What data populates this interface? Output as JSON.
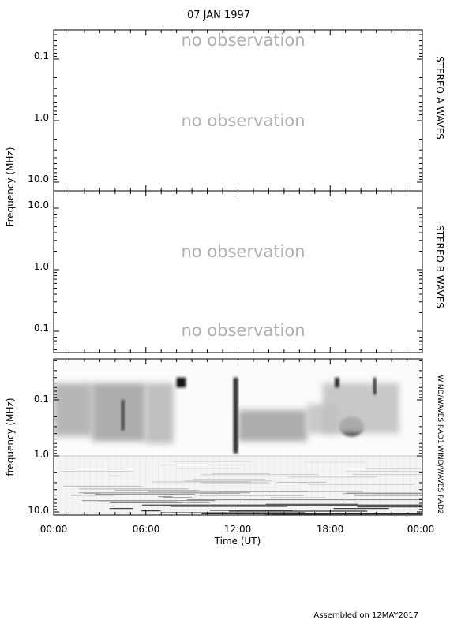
{
  "title": "07 JAN 1997",
  "footer": "Assembled on 12MAY2017",
  "colors": {
    "axis": "#000000",
    "no_observation_text": "#b0b0b0",
    "spectrogram_dark": "#111111"
  },
  "chart_data": [
    {
      "type": "heatmap",
      "panel": "STEREO A WAVES",
      "side_label": "STEREO A WAVES",
      "ylabel": "Frequency (MHz)",
      "y_scale": "log",
      "y_direction": "frequency decreases downward",
      "ylim": [
        12.5,
        0.04
      ],
      "yticks": [
        "0.1",
        "1.0",
        "10.0"
      ],
      "status_text": [
        "no observation",
        "no observation"
      ],
      "data": "none"
    },
    {
      "type": "heatmap",
      "panel": "STEREO B WAVES",
      "side_label": "STEREO B WAVES",
      "ylabel": "Frequency (MHz)",
      "y_scale": "log",
      "y_direction": "frequency decreases upward",
      "ylim": [
        0.045,
        13
      ],
      "yticks": [
        "10.0",
        "1.0",
        "0.1"
      ],
      "status_text": [
        "no observation",
        "no observation"
      ],
      "data": "none"
    },
    {
      "type": "heatmap",
      "panel": "WIND/WAVES",
      "ylabel": "frequency (MHz)",
      "xlabel": "Time (UT)",
      "x_ticks": [
        "00:00",
        "06:00",
        "12:00",
        "18:00",
        "00:00"
      ],
      "y_scale": "log",
      "ylim": [
        12.5,
        0.04
      ],
      "yticks": [
        "0.1",
        "1.0",
        "10.0"
      ],
      "sub_bands": [
        {
          "name": "WIND/WAVES RAD1",
          "range_mhz": [
            0.04,
            1.0
          ]
        },
        {
          "name": "WIND/WAVES RAD2",
          "range_mhz": [
            1.0,
            12.5
          ]
        }
      ],
      "features": [
        {
          "kind": "diffuse emission",
          "t_start_h": 0.0,
          "t_end_h": 2.5,
          "f_hi_mhz": 0.05,
          "f_lo_mhz": 0.45,
          "intensity": 0.3
        },
        {
          "kind": "diffuse emission",
          "t_start_h": 2.5,
          "t_end_h": 6.0,
          "f_hi_mhz": 0.05,
          "f_lo_mhz": 0.55,
          "intensity": 0.35
        },
        {
          "kind": "diffuse emission",
          "t_start_h": 6.0,
          "t_end_h": 7.8,
          "f_hi_mhz": 0.05,
          "f_lo_mhz": 0.6,
          "intensity": 0.25
        },
        {
          "kind": "diffuse emission",
          "t_start_h": 12.0,
          "t_end_h": 16.5,
          "f_hi_mhz": 0.15,
          "f_lo_mhz": 0.55,
          "intensity": 0.35
        },
        {
          "kind": "diffuse emission",
          "t_start_h": 16.5,
          "t_end_h": 18.5,
          "f_hi_mhz": 0.12,
          "f_lo_mhz": 0.4,
          "intensity": 0.2
        },
        {
          "kind": "intense patch",
          "t_start_h": 18.6,
          "t_end_h": 20.2,
          "f_hi_mhz": 0.2,
          "f_lo_mhz": 0.45,
          "intensity": 0.85
        },
        {
          "kind": "diffuse emission",
          "t_start_h": 17.5,
          "t_end_h": 22.5,
          "f_hi_mhz": 0.05,
          "f_lo_mhz": 0.4,
          "intensity": 0.2
        },
        {
          "kind": "burst",
          "t_start_h": 8.0,
          "t_end_h": 8.6,
          "f_hi_mhz": 0.04,
          "f_lo_mhz": 0.06,
          "intensity": 1.0
        },
        {
          "kind": "burst",
          "t_start_h": 11.7,
          "t_end_h": 12.0,
          "f_hi_mhz": 0.04,
          "f_lo_mhz": 0.9,
          "intensity": 0.9
        },
        {
          "kind": "burst",
          "t_start_h": 18.3,
          "t_end_h": 18.6,
          "f_hi_mhz": 0.04,
          "f_lo_mhz": 0.06,
          "intensity": 0.9
        },
        {
          "kind": "burst",
          "t_start_h": 4.4,
          "t_end_h": 4.6,
          "f_hi_mhz": 0.1,
          "f_lo_mhz": 0.35,
          "intensity": 0.8
        },
        {
          "kind": "burst",
          "t_start_h": 20.8,
          "t_end_h": 21.0,
          "f_hi_mhz": 0.04,
          "f_lo_mhz": 0.08,
          "intensity": 0.9
        }
      ]
    }
  ]
}
